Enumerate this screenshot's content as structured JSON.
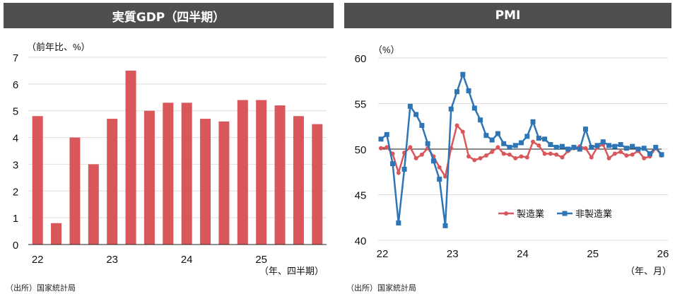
{
  "chart_data": [
    {
      "type": "bar",
      "title": "実質GDP（四半期）",
      "ylabel": "（前年比、%）",
      "xlabel": "（年、四半期）",
      "ylim": [
        0,
        7
      ],
      "yticks": [
        "0",
        "1",
        "2",
        "3",
        "4",
        "5",
        "6",
        "7"
      ],
      "xtick_labels": [
        "22",
        "23",
        "24",
        "25"
      ],
      "categories": [
        "22Q1",
        "22Q2",
        "22Q3",
        "22Q4",
        "23Q1",
        "23Q2",
        "23Q3",
        "23Q4",
        "24Q1",
        "24Q2",
        "24Q3",
        "24Q4",
        "25Q1",
        "25Q2",
        "25Q3",
        "25Q4"
      ],
      "values": [
        4.8,
        0.8,
        4.0,
        3.0,
        4.7,
        6.5,
        5.0,
        5.3,
        5.3,
        4.7,
        4.6,
        5.4,
        5.4,
        5.2,
        4.8,
        4.5
      ],
      "color": "#d9575b",
      "grid": true,
      "source": "（出所）国家統計局"
    },
    {
      "type": "line",
      "title": "PMI",
      "ylabel": "（%）",
      "xlabel": "（年、月）",
      "ylim": [
        40,
        60
      ],
      "yticks": [
        "40",
        "45",
        "50",
        "55",
        "60"
      ],
      "xtick_labels": [
        "22",
        "23",
        "24",
        "25",
        "26"
      ],
      "x_range": [
        "2022-01",
        "2026-01"
      ],
      "reference_line": 50,
      "legend_position": "bottom-center",
      "grid": true,
      "series": [
        {
          "name": "製造業",
          "color": "#d9575b",
          "marker": "circle",
          "values": [
            50.1,
            50.2,
            49.5,
            47.4,
            49.6,
            50.2,
            49.0,
            49.4,
            50.1,
            49.2,
            48.0,
            47.0,
            50.1,
            52.6,
            51.9,
            49.2,
            48.8,
            49.0,
            49.3,
            49.7,
            50.2,
            49.5,
            49.4,
            49.0,
            49.2,
            49.1,
            50.8,
            50.4,
            49.5,
            49.5,
            49.4,
            49.1,
            49.8,
            50.1,
            50.3,
            50.1,
            49.1,
            50.2,
            50.5,
            49.0,
            49.5,
            49.7,
            49.3,
            49.4,
            49.8,
            49.0,
            49.2,
            50.1,
            49.3
          ]
        },
        {
          "name": "非製造業",
          "color": "#2e75b6",
          "marker": "square",
          "values": [
            51.1,
            51.6,
            48.4,
            41.9,
            47.8,
            54.7,
            53.8,
            52.6,
            50.6,
            48.7,
            46.7,
            41.6,
            54.4,
            56.3,
            58.2,
            56.4,
            54.5,
            53.2,
            51.5,
            51.0,
            51.7,
            50.6,
            50.2,
            50.4,
            50.7,
            51.4,
            53.0,
            51.2,
            51.1,
            50.5,
            50.2,
            50.3,
            50.0,
            50.2,
            50.0,
            52.2,
            50.2,
            50.4,
            50.8,
            50.4,
            50.3,
            50.5,
            50.1,
            50.3,
            50.0,
            50.1,
            49.5,
            50.2,
            49.4
          ]
        }
      ],
      "source": "（出所）国家統計局"
    }
  ]
}
